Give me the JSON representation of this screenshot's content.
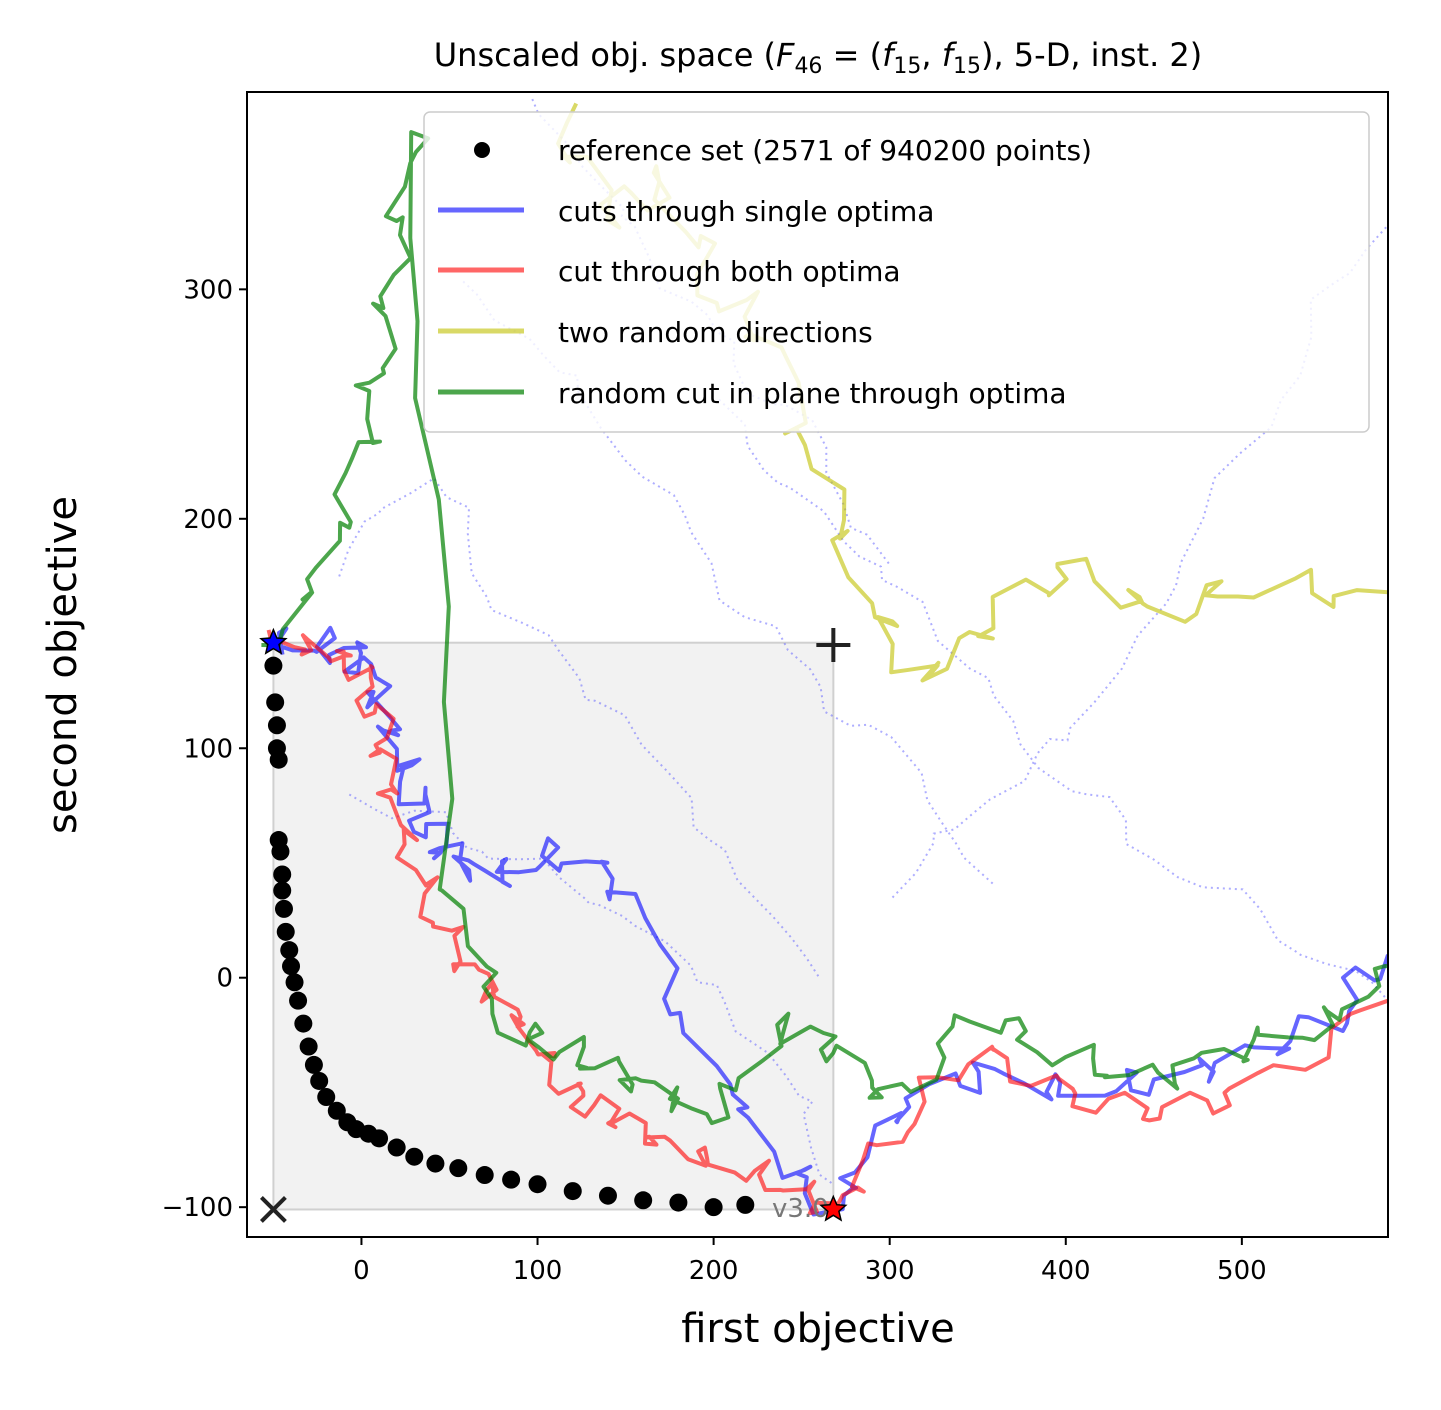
{
  "chart_data": {
    "type": "line",
    "title": "Unscaled obj. space (F46 = (f15, f15), 5-D, inst. 2)",
    "title_parts": {
      "prefix": "Unscaled obj. space (",
      "F": "F",
      "F_sub": "46",
      "eq": " = (",
      "f1": "f",
      "f1_sub": "15",
      "comma": ", ",
      "f2": "f",
      "f2_sub": "15",
      "suffix": "), 5-D, inst. 2)"
    },
    "xlabel": "first objective",
    "ylabel": "second objective",
    "xlim": [
      -65,
      583
    ],
    "ylim": [
      -113,
      386
    ],
    "xticks": [
      0,
      100,
      200,
      300,
      400,
      500
    ],
    "yticks": [
      -100,
      0,
      100,
      200,
      300
    ],
    "grid": false,
    "legend_position": "top-right",
    "version_label": "v3.0",
    "colors": {
      "reference": "#000000",
      "single": "#0000ff",
      "both": "#ff0000",
      "random": "#bfbf00",
      "plane": "#008000",
      "dotted": "#4b4bff"
    },
    "special_points": {
      "ideal_x": [
        -50,
        -101
      ],
      "nadir_plus": [
        268,
        145
      ],
      "optimum_f1": [
        -50,
        146
      ],
      "optimum_f2": [
        268,
        -101
      ]
    },
    "reference_shade": {
      "x": [
        -50,
        268
      ],
      "y": [
        -101,
        146
      ]
    },
    "series": [
      {
        "name": "reference set (2571 of 940200 points)",
        "kind": "scatter",
        "x": [
          -50,
          -49,
          -48,
          -48,
          -47,
          -47,
          -46,
          -45,
          -45,
          -44,
          -43,
          -41,
          -40,
          -38,
          -36,
          -33,
          -30,
          -27,
          -24,
          -20,
          -14,
          -8,
          -3,
          4,
          10,
          20,
          30,
          42,
          55,
          70,
          85,
          100,
          120,
          140,
          160,
          180,
          200,
          218
        ],
        "y": [
          136,
          120,
          110,
          100,
          95,
          60,
          55,
          45,
          38,
          30,
          20,
          12,
          5,
          -2,
          -10,
          -20,
          -30,
          -38,
          -45,
          -52,
          -58,
          -63,
          -66,
          -68,
          -70,
          -74,
          -78,
          -81,
          -83,
          -86,
          -88,
          -90,
          -93,
          -95,
          -97,
          -98,
          -100,
          -99
        ]
      },
      {
        "name": "cuts through single optima",
        "kind": "line",
        "x": [
          -50,
          -20,
          0,
          10,
          20,
          30,
          40,
          55,
          80,
          110,
          150,
          190,
          240,
          270,
          300,
          350,
          400,
          450,
          500,
          550,
          583
        ],
        "y": [
          146,
          145,
          140,
          120,
          100,
          80,
          60,
          50,
          45,
          55,
          40,
          -30,
          -80,
          -101,
          -60,
          -40,
          -50,
          -45,
          -35,
          -20,
          10
        ]
      },
      {
        "name": "cut through both optima",
        "kind": "line",
        "x": [
          -50,
          -20,
          0,
          10,
          15,
          25,
          40,
          60,
          80,
          100,
          120,
          140,
          165,
          200,
          240,
          268,
          300,
          350,
          400,
          450,
          500,
          583
        ],
        "y": [
          146,
          143,
          135,
          110,
          85,
          60,
          30,
          5,
          -10,
          -30,
          -50,
          -60,
          -70,
          -80,
          -90,
          -101,
          -70,
          -30,
          -50,
          -60,
          -50,
          -10
        ]
      },
      {
        "name": "two random directions",
        "kind": "line",
        "x": [
          110,
          140,
          170,
          200,
          230,
          260,
          290,
          320,
          350,
          400,
          450,
          500,
          583
        ],
        "y": [
          380,
          330,
          350,
          300,
          280,
          220,
          160,
          130,
          150,
          180,
          160,
          170,
          168
        ]
      },
      {
        "name": "random cut in plane through optima",
        "kind": "line",
        "x": [
          -50,
          -20,
          0,
          10,
          20,
          30,
          50,
          80,
          110,
          140,
          170,
          200,
          240,
          268,
          300,
          350,
          400,
          450,
          500,
          550,
          583
        ],
        "y": [
          146,
          180,
          230,
          270,
          320,
          370,
          40,
          -20,
          -30,
          -40,
          -50,
          -60,
          -20,
          -30,
          -55,
          -15,
          -35,
          -45,
          -30,
          -20,
          5
        ]
      }
    ]
  }
}
